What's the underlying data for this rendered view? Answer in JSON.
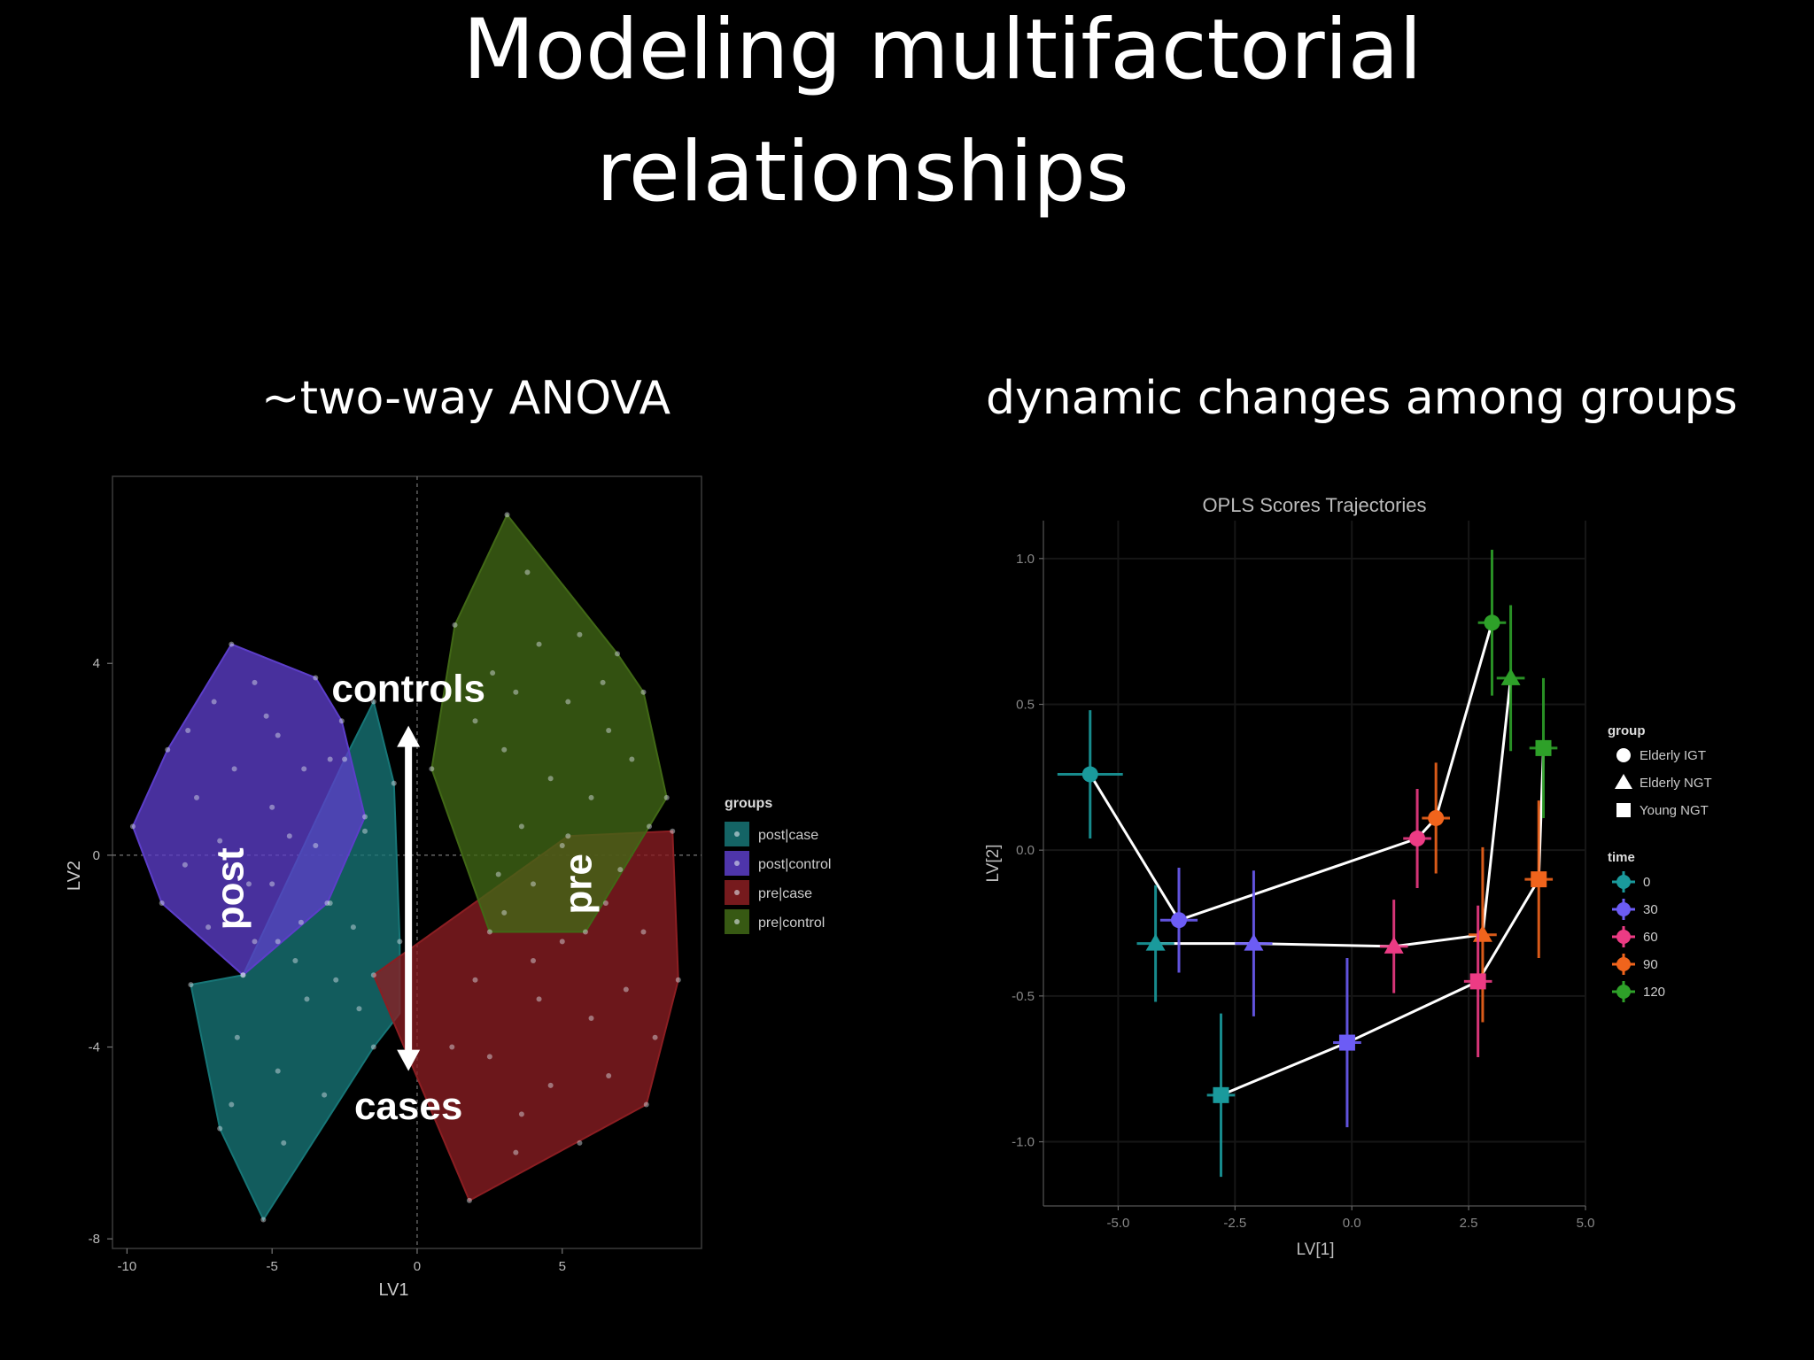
{
  "slide": {
    "title_line1": "Modeling multifactorial",
    "title_line2": "relationships",
    "subtitle_left": "~two-way ANOVA",
    "subtitle_right": "dynamic changes among groups"
  },
  "chart_data": [
    {
      "type": "scatter",
      "xlabel": "LV1",
      "ylabel": "LV2",
      "xlim": [
        -10.5,
        9.8
      ],
      "ylim": [
        -8.2,
        7.9
      ],
      "xticks": [
        -10,
        -5,
        0,
        5
      ],
      "yticks": [
        4,
        0,
        -4,
        -8
      ],
      "grid": false,
      "legend": {
        "title": "groups",
        "position": "right",
        "entries": [
          "post|case",
          "post|control",
          "pre|case",
          "pre|control"
        ]
      },
      "series": [
        {
          "name": "post|case",
          "color": "#177677",
          "hull": [
            [
              -1.5,
              3.2
            ],
            [
              -0.8,
              1.5
            ],
            [
              -0.6,
              -1.8
            ],
            [
              -0.6,
              -3.3
            ],
            [
              -1.5,
              -4.0
            ],
            [
              -5.3,
              -7.6
            ],
            [
              -6.8,
              -5.7
            ],
            [
              -7.8,
              -2.7
            ],
            [
              -6.0,
              -2.5
            ],
            [
              -2.5,
              2.0
            ]
          ],
          "points": [
            [
              -1.5,
              3.2
            ],
            [
              -0.8,
              1.5
            ],
            [
              -0.6,
              -1.8
            ],
            [
              -1.5,
              -4.0
            ],
            [
              -5.3,
              -7.6
            ],
            [
              -6.8,
              -5.7
            ],
            [
              -7.8,
              -2.7
            ],
            [
              -6.0,
              -2.5
            ],
            [
              -2.5,
              2.0
            ],
            [
              -3.0,
              -1.0
            ],
            [
              -4.2,
              -2.2
            ],
            [
              -5.0,
              -0.6
            ],
            [
              -3.8,
              -3.0
            ],
            [
              -2.2,
              -1.5
            ],
            [
              -4.8,
              -4.5
            ],
            [
              -6.2,
              -3.8
            ],
            [
              -3.2,
              -5.0
            ],
            [
              -2.0,
              -3.2
            ],
            [
              -5.6,
              -1.8
            ],
            [
              -3.5,
              0.2
            ],
            [
              -1.8,
              0.5
            ],
            [
              -4.6,
              -6.0
            ],
            [
              -6.4,
              -5.2
            ],
            [
              -2.8,
              -2.6
            ],
            [
              -4.0,
              -1.4
            ]
          ]
        },
        {
          "name": "post|control",
          "color": "#5c3ec9",
          "hull": [
            [
              -6.4,
              4.4
            ],
            [
              -3.5,
              3.7
            ],
            [
              -2.6,
              2.8
            ],
            [
              -1.8,
              0.8
            ],
            [
              -3.1,
              -1.0
            ],
            [
              -6.0,
              -2.5
            ],
            [
              -8.8,
              -1.0
            ],
            [
              -9.8,
              0.6
            ],
            [
              -8.6,
              2.2
            ]
          ],
          "points": [
            [
              -6.4,
              4.4
            ],
            [
              -3.5,
              3.7
            ],
            [
              -2.6,
              2.8
            ],
            [
              -1.8,
              0.8
            ],
            [
              -3.1,
              -1.0
            ],
            [
              -6.0,
              -2.5
            ],
            [
              -8.8,
              -1.0
            ],
            [
              -9.8,
              0.6
            ],
            [
              -8.6,
              2.2
            ],
            [
              -7.0,
              3.2
            ],
            [
              -5.6,
              3.6
            ],
            [
              -4.8,
              2.5
            ],
            [
              -6.3,
              1.8
            ],
            [
              -7.6,
              1.2
            ],
            [
              -5.0,
              1.0
            ],
            [
              -3.9,
              1.8
            ],
            [
              -6.8,
              0.3
            ],
            [
              -8.0,
              -0.2
            ],
            [
              -4.4,
              0.4
            ],
            [
              -5.8,
              -0.6
            ],
            [
              -7.2,
              -1.5
            ],
            [
              -4.8,
              -1.8
            ],
            [
              -3.0,
              2.0
            ],
            [
              -5.2,
              2.9
            ],
            [
              -7.9,
              2.6
            ],
            [
              -6.6,
              -1.2
            ]
          ]
        },
        {
          "name": "pre|case",
          "color": "#8b1e22",
          "hull": [
            [
              5.2,
              0.4
            ],
            [
              8.8,
              0.5
            ],
            [
              9.0,
              -2.6
            ],
            [
              7.9,
              -5.2
            ],
            [
              1.8,
              -7.2
            ],
            [
              -1.5,
              -2.5
            ]
          ],
          "points": [
            [
              5.2,
              0.4
            ],
            [
              8.8,
              0.5
            ],
            [
              9.0,
              -2.6
            ],
            [
              7.9,
              -5.2
            ],
            [
              1.8,
              -7.2
            ],
            [
              -1.5,
              -2.5
            ],
            [
              3.0,
              -1.2
            ],
            [
              5.0,
              -1.8
            ],
            [
              6.5,
              -1.0
            ],
            [
              7.8,
              -1.6
            ],
            [
              4.2,
              -3.0
            ],
            [
              6.0,
              -3.4
            ],
            [
              7.2,
              -2.8
            ],
            [
              2.5,
              -4.2
            ],
            [
              4.6,
              -4.8
            ],
            [
              6.6,
              -4.6
            ],
            [
              3.4,
              -6.2
            ],
            [
              1.2,
              -4.0
            ],
            [
              5.6,
              -6.0
            ],
            [
              8.2,
              -3.8
            ],
            [
              4.0,
              -2.2
            ],
            [
              2.0,
              -2.6
            ],
            [
              7.0,
              -0.3
            ],
            [
              3.6,
              -5.4
            ]
          ]
        },
        {
          "name": "pre|control",
          "color": "#416816",
          "hull": [
            [
              3.1,
              7.1
            ],
            [
              6.9,
              4.2
            ],
            [
              7.8,
              3.4
            ],
            [
              8.6,
              1.2
            ],
            [
              8.0,
              0.6
            ],
            [
              5.8,
              -1.6
            ],
            [
              2.5,
              -1.6
            ],
            [
              0.5,
              1.8
            ],
            [
              1.3,
              4.8
            ]
          ],
          "points": [
            [
              3.1,
              7.1
            ],
            [
              6.9,
              4.2
            ],
            [
              7.8,
              3.4
            ],
            [
              8.6,
              1.2
            ],
            [
              8.0,
              0.6
            ],
            [
              5.8,
              -1.6
            ],
            [
              2.5,
              -1.6
            ],
            [
              0.5,
              1.8
            ],
            [
              1.3,
              4.8
            ],
            [
              3.8,
              5.9
            ],
            [
              4.2,
              4.4
            ],
            [
              5.6,
              4.6
            ],
            [
              2.6,
              3.8
            ],
            [
              5.2,
              3.2
            ],
            [
              6.6,
              2.6
            ],
            [
              3.0,
              2.2
            ],
            [
              4.6,
              1.6
            ],
            [
              2.0,
              2.8
            ],
            [
              6.0,
              1.2
            ],
            [
              3.6,
              0.6
            ],
            [
              7.4,
              2.0
            ],
            [
              5.0,
              0.2
            ],
            [
              4.0,
              -0.6
            ],
            [
              2.8,
              -0.4
            ],
            [
              6.4,
              3.6
            ],
            [
              3.4,
              3.4
            ]
          ]
        }
      ],
      "annotations": [
        {
          "text": "controls",
          "x": -0.3,
          "y": 3.2
        },
        {
          "text": "cases",
          "x": -0.3,
          "y": -5.5
        },
        {
          "text": "post",
          "x": -6.0,
          "y": -0.7,
          "rotate": -90
        },
        {
          "text": "pre",
          "x": 6.0,
          "y": -0.6,
          "rotate": -90
        }
      ],
      "arrow": {
        "x": -0.3,
        "from": -4.5,
        "to": 2.7
      }
    },
    {
      "type": "scatter",
      "title": "OPLS Scores Trajectories",
      "xlabel": "LV[1]",
      "ylabel": "LV[2]",
      "xlim": [
        -6.6,
        5.0
      ],
      "ylim": [
        -1.22,
        1.13
      ],
      "xticks": [
        -5.0,
        -2.5,
        0.0,
        2.5,
        5.0
      ],
      "xtick_labels": [
        "-5.0",
        "-2.5",
        "0.0",
        "2.5",
        "5.0"
      ],
      "yticks": [
        1.0,
        0.5,
        0.0,
        -0.5,
        -1.0
      ],
      "ytick_labels": [
        "1.0",
        "0.5",
        "0.0",
        "-0.5",
        "-1.0"
      ],
      "grid": false,
      "legend": {
        "position": "right",
        "group_title": "group",
        "groups": [
          {
            "name": "Elderly IGT",
            "shape": "circle"
          },
          {
            "name": "Elderly NGT",
            "shape": "triangle"
          },
          {
            "name": "Young NGT",
            "shape": "square"
          }
        ],
        "time_title": "time",
        "times": [
          {
            "name": "0",
            "color": "#1a9a9c"
          },
          {
            "name": "30",
            "color": "#6c5cf5"
          },
          {
            "name": "60",
            "color": "#ec3b84"
          },
          {
            "name": "90",
            "color": "#f0641c"
          },
          {
            "name": "120",
            "color": "#2ea029"
          }
        ]
      },
      "series": [
        {
          "name": "Elderly IGT",
          "shape": "circle",
          "points": [
            {
              "time": "0",
              "x": -5.6,
              "y": 0.26,
              "ex": 0.7,
              "ey": 0.22
            },
            {
              "time": "30",
              "x": -3.7,
              "y": -0.24,
              "ex": 0.4,
              "ey": 0.18
            },
            {
              "time": "60",
              "x": 1.4,
              "y": 0.04,
              "ex": 0.3,
              "ey": 0.17
            },
            {
              "time": "90",
              "x": 1.8,
              "y": 0.11,
              "ex": 0.3,
              "ey": 0.19
            },
            {
              "time": "120",
              "x": 3.0,
              "y": 0.78,
              "ex": 0.3,
              "ey": 0.25
            }
          ]
        },
        {
          "name": "Elderly NGT",
          "shape": "triangle",
          "points": [
            {
              "time": "0",
              "x": -4.2,
              "y": -0.32,
              "ex": 0.4,
              "ey": 0.2
            },
            {
              "time": "30",
              "x": -2.1,
              "y": -0.32,
              "ex": 0.4,
              "ey": 0.25
            },
            {
              "time": "60",
              "x": 0.9,
              "y": -0.33,
              "ex": 0.3,
              "ey": 0.16
            },
            {
              "time": "90",
              "x": 2.8,
              "y": -0.29,
              "ex": 0.3,
              "ey": 0.3
            },
            {
              "time": "120",
              "x": 3.4,
              "y": 0.59,
              "ex": 0.3,
              "ey": 0.25
            }
          ]
        },
        {
          "name": "Young NGT",
          "shape": "square",
          "points": [
            {
              "time": "0",
              "x": -2.8,
              "y": -0.84,
              "ex": 0.3,
              "ey": 0.28
            },
            {
              "time": "30",
              "x": -0.1,
              "y": -0.66,
              "ex": 0.3,
              "ey": 0.29
            },
            {
              "time": "60",
              "x": 2.7,
              "y": -0.45,
              "ex": 0.3,
              "ey": 0.26
            },
            {
              "time": "90",
              "x": 4.0,
              "y": -0.1,
              "ex": 0.3,
              "ey": 0.27
            },
            {
              "time": "120",
              "x": 4.1,
              "y": 0.35,
              "ex": 0.3,
              "ey": 0.24
            }
          ]
        }
      ]
    }
  ]
}
